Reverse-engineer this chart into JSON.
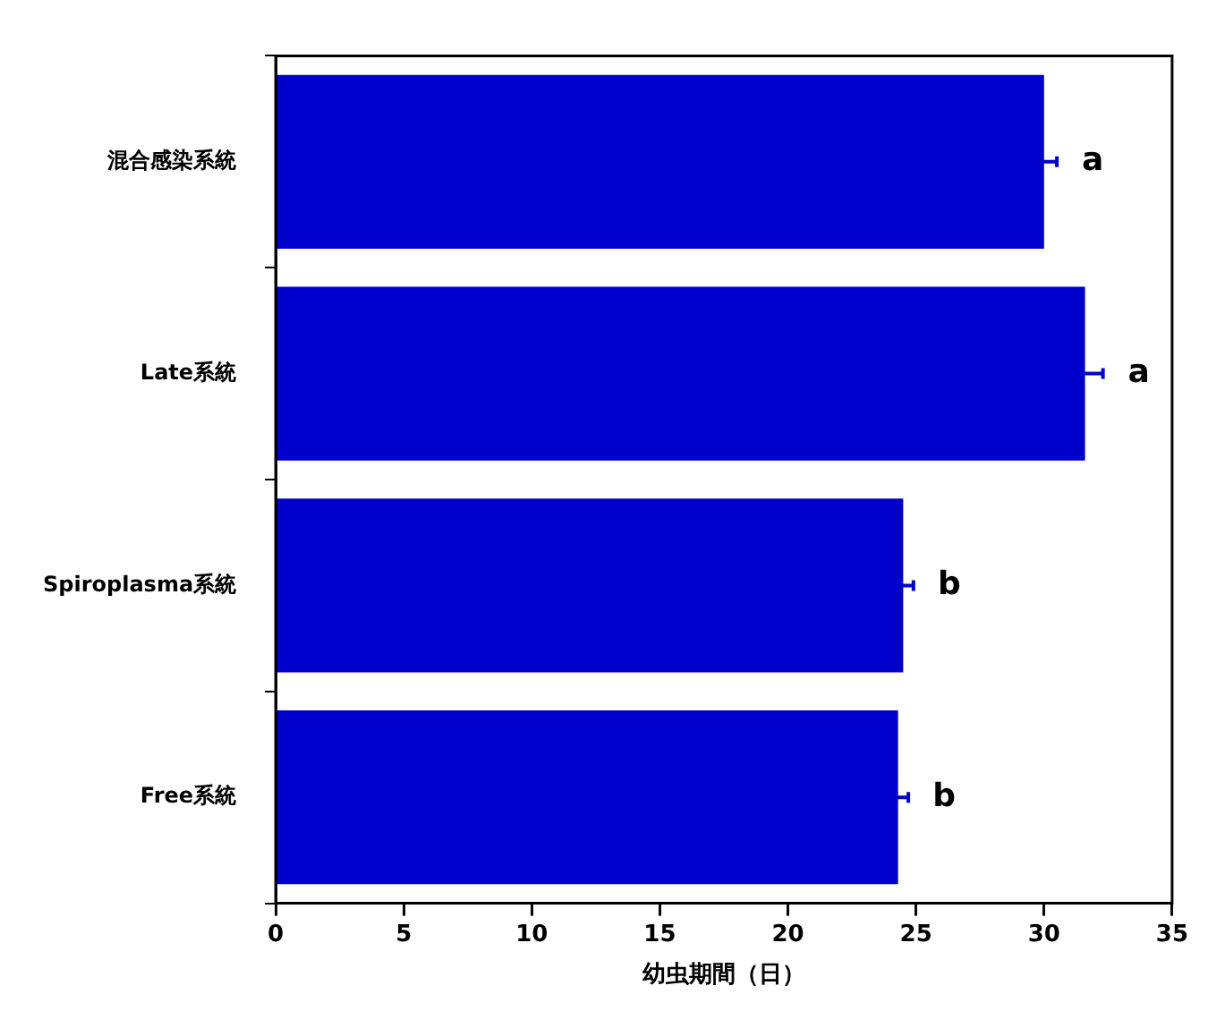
{
  "chart_data": {
    "type": "bar",
    "orientation": "horizontal",
    "xlabel": "幼虫期間（日）",
    "categories": [
      "混合感染系統",
      "Late系統",
      "Spiroplasma系統",
      "Free系統"
    ],
    "values": [
      30.0,
      31.6,
      24.5,
      24.3
    ],
    "errors": [
      0.5,
      0.7,
      0.4,
      0.4
    ],
    "color": "#0000cc",
    "xlim": [
      0,
      35
    ],
    "xticks": [
      0,
      5,
      10,
      15,
      20,
      25,
      30,
      35
    ],
    "annotations": [
      "a",
      "a",
      "b",
      "b"
    ]
  }
}
